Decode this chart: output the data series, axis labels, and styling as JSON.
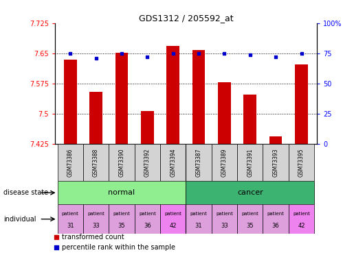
{
  "title": "GDS1312 / 205592_at",
  "samples": [
    "GSM73386",
    "GSM73388",
    "GSM73390",
    "GSM73392",
    "GSM73394",
    "GSM73387",
    "GSM73389",
    "GSM73391",
    "GSM73393",
    "GSM73395"
  ],
  "red_values": [
    7.635,
    7.555,
    7.652,
    7.507,
    7.668,
    7.658,
    7.578,
    7.548,
    7.443,
    7.622
  ],
  "blue_values": [
    75,
    71,
    75,
    72,
    75,
    75,
    75,
    74,
    72,
    75
  ],
  "ylim_left": [
    7.425,
    7.725
  ],
  "ylim_right": [
    0,
    100
  ],
  "yticks_left": [
    7.425,
    7.5,
    7.575,
    7.65,
    7.725
  ],
  "yticks_right": [
    0,
    25,
    50,
    75,
    100
  ],
  "ytick_labels_left": [
    "7.425",
    "7.5",
    "7.575",
    "7.65",
    "7.725"
  ],
  "ytick_labels_right": [
    "0",
    "25",
    "50",
    "75",
    "100%"
  ],
  "hlines": [
    7.5,
    7.575,
    7.65
  ],
  "bar_color": "#CC0000",
  "blue_color": "#0000CC",
  "bar_width": 0.5,
  "bar_bottom": 7.425,
  "indiv_colors": [
    "#DDA0DD",
    "#DDA0DD",
    "#DDA0DD",
    "#DDA0DD",
    "#EE82EE",
    "#DDA0DD",
    "#DDA0DD",
    "#DDA0DD",
    "#DDA0DD",
    "#EE82EE"
  ],
  "indiv_numbers": [
    "31",
    "33",
    "35",
    "36",
    "42",
    "31",
    "33",
    "35",
    "36",
    "42"
  ],
  "disease_normal_color": "#90EE90",
  "disease_cancer_color": "#3CB371",
  "sample_bg_color": "#D3D3D3",
  "legend_items": [
    {
      "color": "#CC0000",
      "label": "transformed count"
    },
    {
      "color": "#0000CC",
      "label": "percentile rank within the sample"
    }
  ]
}
